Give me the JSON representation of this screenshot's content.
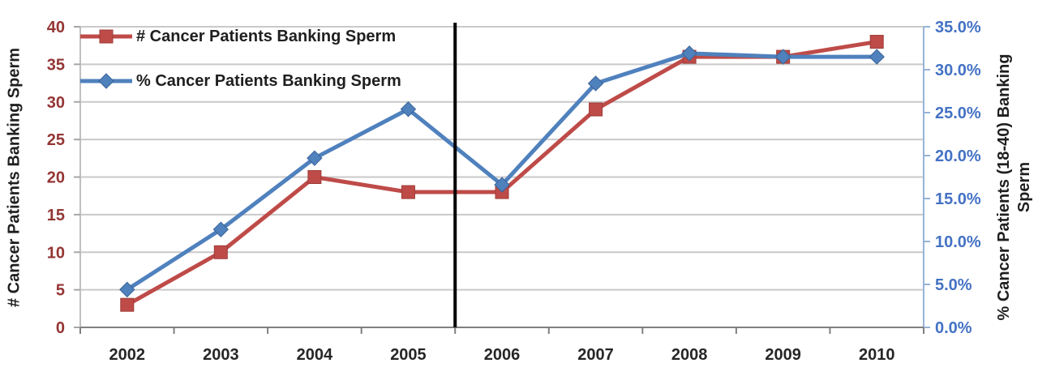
{
  "chart_data": {
    "type": "line",
    "title": "",
    "categories": [
      "2002",
      "2003",
      "2004",
      "2005",
      "2006",
      "2007",
      "2008",
      "2009",
      "2010"
    ],
    "series": [
      {
        "name": "# Cancer Patients Banking Sperm",
        "axis": "left",
        "marker": "square",
        "color": "#BE4B48",
        "marker_edge_color": "#9E3B38",
        "values": [
          3,
          10,
          20,
          18,
          18,
          29,
          36,
          36,
          38
        ]
      },
      {
        "name": "% Cancer Patients Banking Sperm",
        "axis": "right",
        "marker": "diamond",
        "color": "#4F81BD",
        "marker_edge_color": "#3A6498",
        "values": [
          4.4,
          11.4,
          19.7,
          25.4,
          16.6,
          28.4,
          31.9,
          31.5,
          31.5
        ],
        "unit": "percent"
      }
    ],
    "left_axis": {
      "title": "# Cancer Patients Banking Sperm",
      "min": 0,
      "max": 40,
      "step": 5,
      "tick_labels": [
        "0",
        "5",
        "10",
        "15",
        "20",
        "25",
        "30",
        "35",
        "40"
      ],
      "tick_label_color": "#943634",
      "axis_line_color": "#BFBFBF",
      "tick_mark_color": "#A6A6A6"
    },
    "right_axis": {
      "title": "% Cancer Patients (18-40) Banking Sperm",
      "title_lines": [
        "% Cancer Patients (18-40) Banking",
        "Sperm"
      ],
      "min": 0,
      "max": 35,
      "step": 5,
      "tick_labels": [
        "0.0%",
        "5.0%",
        "10.0%",
        "15.0%",
        "20.0%",
        "25.0%",
        "30.0%",
        "35.0%"
      ],
      "tick_label_color": "#4472C4",
      "axis_line_color": "#95B3D7",
      "tick_mark_color": "#95B3D7"
    },
    "x_axis": {
      "label_color": "#262626",
      "axis_line_color": "#808080",
      "tick_mark_color": "#808080"
    },
    "annotation": {
      "type": "vertical_divider",
      "between": [
        "2005",
        "2006"
      ],
      "color": "#000000"
    },
    "legend": {
      "position": "top-left",
      "entries": [
        "# Cancer Patients Banking Sperm",
        "% Cancer Patients Banking Sperm"
      ],
      "text_color": "#1F1F1F"
    },
    "grid": {
      "show": true,
      "color": "#C9C9C9"
    },
    "ylim_left": [
      0,
      40
    ],
    "ylim_right": [
      0,
      35
    ]
  }
}
